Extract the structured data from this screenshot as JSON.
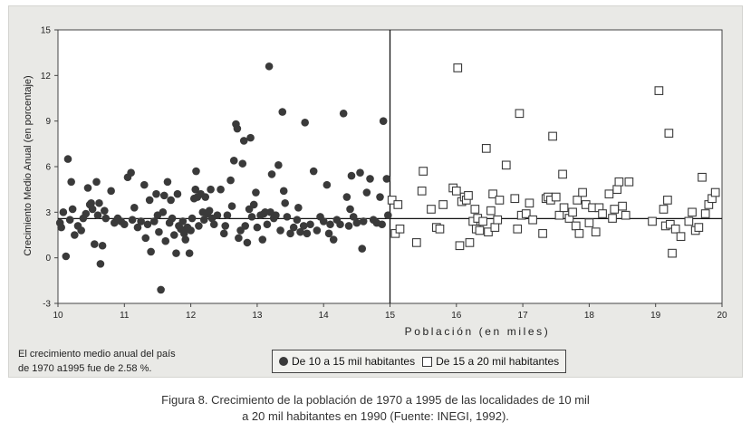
{
  "chart_data": {
    "type": "scatter",
    "title": "",
    "xlabel": "Población (en miles)",
    "ylabel": "Crecimiento Medio Anual (en porcentaje)",
    "xlim": [
      10,
      20
    ],
    "ylim": [
      -3,
      15
    ],
    "xticks": [
      "10",
      "11",
      "12",
      "13",
      "14",
      "15",
      "16",
      "17",
      "18",
      "19",
      "20"
    ],
    "yticks": [
      "-3",
      "0",
      "3",
      "6",
      "9",
      "12",
      "15"
    ],
    "grid": false,
    "legend_position": "bottom",
    "divider_x": 15,
    "mean_line_y": 2.58,
    "series": [
      {
        "name": "De 10 a 15 mil habitantes",
        "marker": "filled-circle",
        "color": "#3a3a3a",
        "points": [
          [
            10.03,
            2.3
          ],
          [
            10.05,
            2.0
          ],
          [
            10.08,
            3.0
          ],
          [
            10.12,
            0.1
          ],
          [
            10.15,
            6.5
          ],
          [
            10.18,
            2.5
          ],
          [
            10.2,
            5.0
          ],
          [
            10.22,
            3.2
          ],
          [
            10.25,
            1.5
          ],
          [
            10.3,
            2.1
          ],
          [
            10.35,
            1.8
          ],
          [
            10.38,
            2.6
          ],
          [
            10.42,
            2.9
          ],
          [
            10.45,
            4.6
          ],
          [
            10.48,
            3.5
          ],
          [
            10.5,
            3.6
          ],
          [
            10.52,
            3.2
          ],
          [
            10.55,
            0.9
          ],
          [
            10.58,
            5.0
          ],
          [
            10.6,
            2.8
          ],
          [
            10.62,
            3.6
          ],
          [
            10.64,
            -0.4
          ],
          [
            10.67,
            0.8
          ],
          [
            10.7,
            3.1
          ],
          [
            10.72,
            2.6
          ],
          [
            10.8,
            4.4
          ],
          [
            10.85,
            2.3
          ],
          [
            10.9,
            2.6
          ],
          [
            10.95,
            2.4
          ],
          [
            11.0,
            2.2
          ],
          [
            11.05,
            5.3
          ],
          [
            11.1,
            5.6
          ],
          [
            11.12,
            2.5
          ],
          [
            11.15,
            3.3
          ],
          [
            11.2,
            2.0
          ],
          [
            11.25,
            2.4
          ],
          [
            11.3,
            4.8
          ],
          [
            11.32,
            1.3
          ],
          [
            11.35,
            2.2
          ],
          [
            11.38,
            3.8
          ],
          [
            11.4,
            0.4
          ],
          [
            11.45,
            2.4
          ],
          [
            11.48,
            4.2
          ],
          [
            11.5,
            2.8
          ],
          [
            11.52,
            1.7
          ],
          [
            11.55,
            -2.1
          ],
          [
            11.58,
            3.0
          ],
          [
            11.6,
            4.1
          ],
          [
            11.62,
            1.1
          ],
          [
            11.65,
            5.0
          ],
          [
            11.68,
            2.3
          ],
          [
            11.7,
            3.8
          ],
          [
            11.72,
            2.6
          ],
          [
            11.75,
            1.5
          ],
          [
            11.78,
            0.3
          ],
          [
            11.8,
            4.2
          ],
          [
            11.82,
            2.1
          ],
          [
            11.85,
            1.9
          ],
          [
            11.88,
            2.4
          ],
          [
            11.9,
            1.6
          ],
          [
            11.92,
            1.2
          ],
          [
            11.95,
            2.0
          ],
          [
            11.98,
            0.3
          ],
          [
            12.0,
            1.8
          ],
          [
            12.02,
            2.6
          ],
          [
            12.05,
            3.9
          ],
          [
            12.07,
            4.5
          ],
          [
            12.08,
            5.7
          ],
          [
            12.1,
            4.0
          ],
          [
            12.12,
            2.1
          ],
          [
            12.15,
            4.2
          ],
          [
            12.18,
            3.0
          ],
          [
            12.2,
            2.5
          ],
          [
            12.22,
            4.0
          ],
          [
            12.25,
            2.9
          ],
          [
            12.28,
            3.1
          ],
          [
            12.3,
            4.5
          ],
          [
            12.32,
            2.6
          ],
          [
            12.35,
            2.2
          ],
          [
            12.4,
            2.8
          ],
          [
            12.45,
            4.5
          ],
          [
            12.5,
            1.6
          ],
          [
            12.52,
            2.1
          ],
          [
            12.55,
            2.8
          ],
          [
            12.6,
            5.1
          ],
          [
            12.62,
            3.4
          ],
          [
            12.65,
            6.4
          ],
          [
            12.68,
            8.8
          ],
          [
            12.7,
            8.5
          ],
          [
            12.72,
            1.3
          ],
          [
            12.75,
            1.8
          ],
          [
            12.78,
            6.2
          ],
          [
            12.8,
            7.7
          ],
          [
            12.82,
            2.1
          ],
          [
            12.85,
            1.0
          ],
          [
            12.88,
            3.2
          ],
          [
            12.9,
            7.9
          ],
          [
            12.92,
            2.7
          ],
          [
            12.95,
            3.5
          ],
          [
            12.98,
            4.3
          ],
          [
            13.0,
            2.0
          ],
          [
            13.05,
            2.8
          ],
          [
            13.08,
            1.2
          ],
          [
            13.1,
            2.9
          ],
          [
            13.12,
            3.0
          ],
          [
            13.15,
            2.2
          ],
          [
            13.18,
            12.6
          ],
          [
            13.2,
            3.0
          ],
          [
            13.22,
            5.5
          ],
          [
            13.25,
            2.6
          ],
          [
            13.28,
            2.8
          ],
          [
            13.32,
            6.1
          ],
          [
            13.35,
            1.8
          ],
          [
            13.38,
            9.6
          ],
          [
            13.4,
            4.4
          ],
          [
            13.42,
            3.6
          ],
          [
            13.45,
            2.7
          ],
          [
            13.5,
            1.6
          ],
          [
            13.55,
            2.0
          ],
          [
            13.6,
            2.5
          ],
          [
            13.62,
            3.3
          ],
          [
            13.65,
            1.7
          ],
          [
            13.7,
            2.1
          ],
          [
            13.72,
            8.9
          ],
          [
            13.75,
            1.6
          ],
          [
            13.8,
            2.2
          ],
          [
            13.85,
            5.7
          ],
          [
            13.9,
            1.8
          ],
          [
            13.95,
            2.7
          ],
          [
            14.0,
            2.4
          ],
          [
            14.05,
            4.8
          ],
          [
            14.08,
            1.6
          ],
          [
            14.1,
            2.2
          ],
          [
            14.15,
            1.2
          ],
          [
            14.2,
            2.5
          ],
          [
            14.25,
            2.2
          ],
          [
            14.3,
            9.5
          ],
          [
            14.35,
            4.0
          ],
          [
            14.38,
            2.1
          ],
          [
            14.4,
            3.2
          ],
          [
            14.42,
            5.4
          ],
          [
            14.45,
            2.7
          ],
          [
            14.5,
            2.3
          ],
          [
            14.55,
            5.6
          ],
          [
            14.58,
            0.6
          ],
          [
            14.6,
            2.4
          ],
          [
            14.65,
            4.3
          ],
          [
            14.7,
            5.2
          ],
          [
            14.75,
            2.5
          ],
          [
            14.8,
            2.3
          ],
          [
            14.85,
            4.0
          ],
          [
            14.88,
            2.2
          ],
          [
            14.9,
            9.0
          ],
          [
            14.95,
            5.2
          ],
          [
            14.97,
            2.8
          ]
        ]
      },
      {
        "name": "De 15 a 20 mil habitantes",
        "marker": "hollow-square",
        "color": "#3a3a3a",
        "points": [
          [
            15.03,
            3.8
          ],
          [
            15.08,
            1.6
          ],
          [
            15.12,
            3.5
          ],
          [
            15.15,
            1.9
          ],
          [
            15.4,
            1.0
          ],
          [
            15.48,
            4.4
          ],
          [
            15.5,
            5.7
          ],
          [
            15.62,
            3.2
          ],
          [
            15.7,
            2.0
          ],
          [
            15.75,
            1.9
          ],
          [
            15.8,
            3.5
          ],
          [
            15.95,
            4.6
          ],
          [
            16.0,
            4.4
          ],
          [
            16.02,
            12.5
          ],
          [
            16.05,
            0.8
          ],
          [
            16.08,
            3.7
          ],
          [
            16.12,
            4.0
          ],
          [
            16.15,
            3.8
          ],
          [
            16.18,
            4.1
          ],
          [
            16.2,
            1.0
          ],
          [
            16.25,
            2.4
          ],
          [
            16.28,
            3.2
          ],
          [
            16.3,
            1.9
          ],
          [
            16.32,
            2.6
          ],
          [
            16.35,
            1.8
          ],
          [
            16.4,
            2.4
          ],
          [
            16.45,
            7.2
          ],
          [
            16.48,
            1.7
          ],
          [
            16.52,
            3.1
          ],
          [
            16.55,
            4.2
          ],
          [
            16.58,
            2.0
          ],
          [
            16.62,
            2.5
          ],
          [
            16.65,
            3.8
          ],
          [
            16.75,
            6.1
          ],
          [
            16.88,
            3.9
          ],
          [
            16.92,
            1.9
          ],
          [
            16.95,
            9.5
          ],
          [
            16.98,
            2.8
          ],
          [
            17.05,
            2.9
          ],
          [
            17.1,
            3.6
          ],
          [
            17.15,
            2.5
          ],
          [
            17.3,
            1.6
          ],
          [
            17.35,
            3.9
          ],
          [
            17.38,
            4.0
          ],
          [
            17.42,
            3.8
          ],
          [
            17.45,
            8.0
          ],
          [
            17.5,
            4.0
          ],
          [
            17.55,
            2.8
          ],
          [
            17.6,
            5.5
          ],
          [
            17.62,
            3.3
          ],
          [
            17.7,
            2.6
          ],
          [
            17.75,
            3.0
          ],
          [
            17.8,
            2.1
          ],
          [
            17.82,
            3.8
          ],
          [
            17.85,
            1.6
          ],
          [
            17.9,
            4.3
          ],
          [
            17.95,
            3.5
          ],
          [
            18.0,
            2.3
          ],
          [
            18.05,
            3.3
          ],
          [
            18.1,
            1.7
          ],
          [
            18.15,
            3.3
          ],
          [
            18.2,
            2.9
          ],
          [
            18.3,
            4.2
          ],
          [
            18.35,
            2.6
          ],
          [
            18.38,
            3.2
          ],
          [
            18.42,
            4.5
          ],
          [
            18.45,
            5.0
          ],
          [
            18.5,
            3.4
          ],
          [
            18.55,
            2.8
          ],
          [
            18.6,
            5.0
          ],
          [
            18.95,
            2.4
          ],
          [
            19.05,
            11.0
          ],
          [
            19.12,
            3.2
          ],
          [
            19.15,
            2.1
          ],
          [
            19.18,
            3.8
          ],
          [
            19.2,
            8.2
          ],
          [
            19.22,
            2.2
          ],
          [
            19.25,
            0.3
          ],
          [
            19.3,
            1.9
          ],
          [
            19.38,
            1.4
          ],
          [
            19.5,
            2.4
          ],
          [
            19.55,
            3.0
          ],
          [
            19.6,
            1.8
          ],
          [
            19.65,
            2.0
          ],
          [
            19.7,
            5.3
          ],
          [
            19.75,
            2.9
          ],
          [
            19.8,
            3.5
          ],
          [
            19.85,
            3.9
          ],
          [
            19.9,
            4.3
          ]
        ]
      }
    ]
  },
  "note": {
    "line1": "El crecimiento medio anual del país",
    "line2": "de 1970 a1995 fue de 2.58 %."
  },
  "caption": {
    "line1": "Figura 8. Crecimiento de la población de 1970 a 1995 de las localidades de 10 mil",
    "line2": "a 20 mil habitantes en 1990 (Fuente: INEGI, 1992)."
  }
}
